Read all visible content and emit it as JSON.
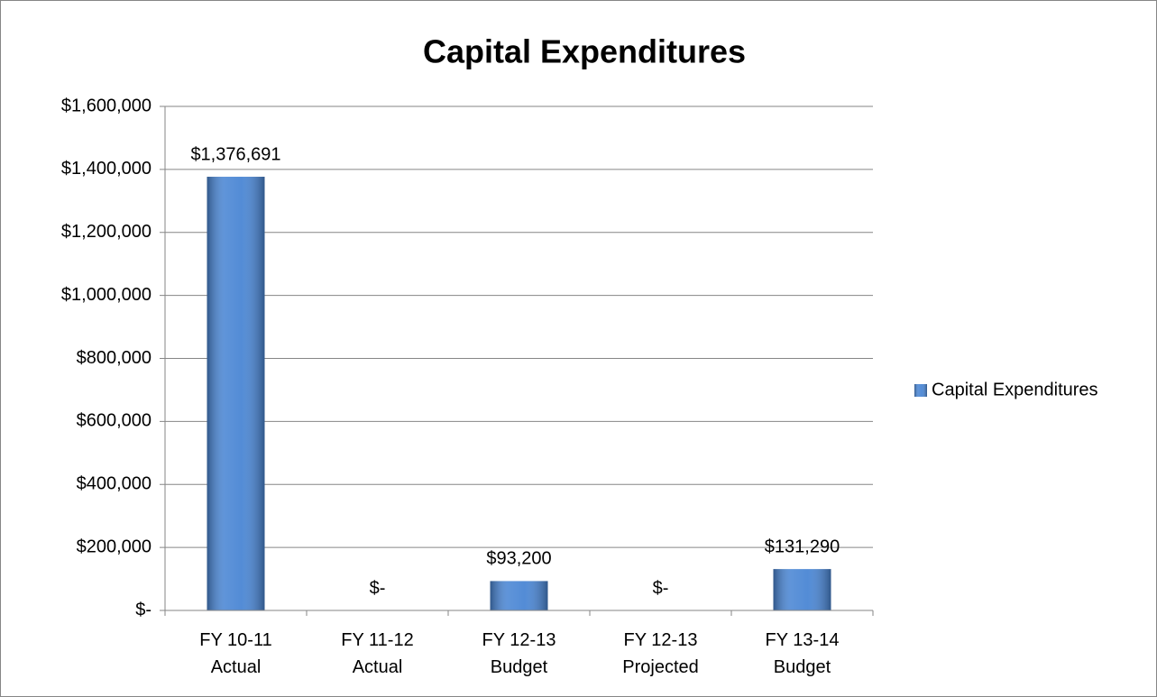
{
  "chart_data": {
    "type": "bar",
    "title": "Capital Expenditures",
    "categories": [
      "FY 10-11\nActual",
      "FY 11-12\nActual",
      "FY 12-13\nBudget",
      "FY 12-13\nProjected",
      "FY 13-14\nBudget"
    ],
    "series": [
      {
        "name": "Capital Expenditures",
        "color": "#4a86d4",
        "values": [
          1376691,
          0,
          93200,
          0,
          131290
        ],
        "value_labels": [
          "$1,376,691",
          "$-",
          "$93,200",
          "$-",
          "$131,290"
        ]
      }
    ],
    "ylim": [
      0,
      1600000
    ],
    "yticks": [
      {
        "value": 0,
        "label": "$-"
      },
      {
        "value": 200000,
        "label": "$200,000"
      },
      {
        "value": 400000,
        "label": "$400,000"
      },
      {
        "value": 600000,
        "label": "$600,000"
      },
      {
        "value": 800000,
        "label": "$800,000"
      },
      {
        "value": 1000000,
        "label": "$1,000,000"
      },
      {
        "value": 1200000,
        "label": "$1,200,000"
      },
      {
        "value": 1400000,
        "label": "$1,400,000"
      },
      {
        "value": 1600000,
        "label": "$1,600,000"
      }
    ],
    "grid": true,
    "legend": "right"
  }
}
